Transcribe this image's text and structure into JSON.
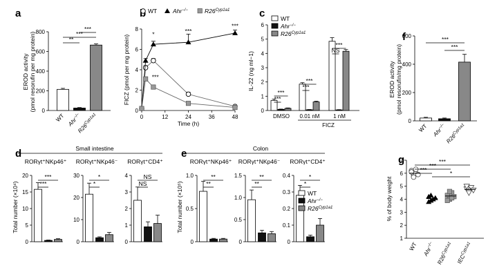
{
  "panel_labels": [
    "a",
    "b",
    "c",
    "d",
    "e",
    "f",
    "g"
  ],
  "colors": {
    "wt": "#ffffff",
    "ahr": "#111111",
    "r26": "#888888",
    "line": "#000000",
    "gridwhite": "#ffffff"
  },
  "chart_data": [
    {
      "id": "a",
      "type": "bar",
      "label": "a",
      "ylabel": [
        "EROD activity",
        "(pmol resorufin per mg protein)"
      ],
      "categories": [
        "WT",
        "Ahr−/−",
        "R26Cyp1a1"
      ],
      "values": [
        215,
        25,
        665
      ],
      "errors": [
        10,
        5,
        12
      ],
      "ylim": [
        0,
        800
      ],
      "yticks": [
        "0",
        "200",
        "400",
        "600",
        "800"
      ],
      "significance": [
        {
          "from": 0,
          "to": 1,
          "text": "**"
        },
        {
          "from": 0,
          "to": 2,
          "text": "***"
        },
        {
          "from": 1,
          "to": 2,
          "text": "***"
        }
      ]
    },
    {
      "id": "b",
      "type": "line",
      "label": "b",
      "ylabel": "FICZ (pmol per mg protein)",
      "xlabel": "Time (h)",
      "xlim": [
        0,
        48
      ],
      "xticks": [
        "0",
        "12",
        "24",
        "36",
        "48"
      ],
      "ylim": [
        0,
        8
      ],
      "yticks": [
        "0",
        "2",
        "4",
        "6",
        "8"
      ],
      "legend": [
        "WT",
        "Ahr−/−",
        "R26Cyp1a1"
      ],
      "series": [
        {
          "name": "WT",
          "marker": "circle-open",
          "x": [
            0,
            2,
            6,
            24,
            48
          ],
          "y": [
            0.2,
            4.2,
            4.9,
            1.6,
            0.4
          ],
          "err": [
            0.1,
            0.2,
            0.2,
            0.2,
            0.1
          ]
        },
        {
          "name": "Ahr−/−",
          "marker": "triangle",
          "x": [
            0,
            2,
            6,
            24,
            48
          ],
          "y": [
            0.2,
            4.9,
            6.5,
            6.7,
            7.6
          ],
          "err": [
            0.1,
            0.2,
            0.3,
            0.8,
            0.3
          ]
        },
        {
          "name": "R26Cyp1a1",
          "marker": "square",
          "x": [
            0,
            2,
            6,
            24,
            48
          ],
          "y": [
            0.2,
            3.1,
            2.3,
            0.7,
            0.3
          ],
          "err": [
            0.1,
            0.2,
            0.2,
            0.1,
            0.05
          ]
        }
      ],
      "annotations": [
        {
          "x": 6,
          "y": 7.3,
          "text": "*"
        },
        {
          "x": 24,
          "y": 7.6,
          "text": "***"
        },
        {
          "x": 48,
          "y": 8.1,
          "text": "***"
        },
        {
          "x": 7,
          "y": 3.1,
          "text": "***"
        }
      ]
    },
    {
      "id": "c",
      "type": "bar",
      "label": "c",
      "ylabel": "IL-22 (ng ml−1)",
      "groups": [
        "DMSO",
        "0.01 nM",
        "1 nM"
      ],
      "group_title": "FICZ",
      "legend": [
        "WT",
        "Ahr−/−",
        "R26Cyp1a1"
      ],
      "series": [
        {
          "name": "WT",
          "values": [
            0.7,
            1.85,
            4.85
          ],
          "err": [
            0.1,
            0.1,
            0.25
          ]
        },
        {
          "name": "Ahr−/−",
          "values": [
            0.08,
            0.05,
            0.04
          ],
          "err": [
            0.02,
            0.02,
            0.02
          ]
        },
        {
          "name": "R26Cyp1a1",
          "values": [
            0.15,
            0.6,
            4.15
          ],
          "err": [
            0.03,
            0.05,
            0.12
          ]
        }
      ],
      "ylim": [
        0,
        6
      ],
      "yticks": [
        "0",
        "1",
        "2",
        "3",
        "4",
        "5",
        "6"
      ],
      "significance": [
        {
          "group": 0,
          "text": "***"
        },
        {
          "group": 0,
          "text": "***"
        },
        {
          "group": 1,
          "text": "***"
        },
        {
          "group": 1,
          "text": "***"
        },
        {
          "group": 2,
          "text": "NS"
        },
        {
          "group": 2,
          "text": "***"
        }
      ]
    },
    {
      "id": "d",
      "type": "bar",
      "label": "d",
      "title": "Small intestine",
      "ylabel": "Total number (×10⁴)",
      "subpanels": [
        {
          "title": "RORγt⁺NKp46⁺",
          "values": [
            15.8,
            0.4,
            0.7
          ],
          "err": [
            2.0,
            0.1,
            0.2
          ],
          "ylim": [
            0,
            20
          ],
          "yticks": [
            "0",
            "5",
            "10",
            "15",
            "20"
          ],
          "sig": [
            "***",
            "***"
          ]
        },
        {
          "title": "RORγt⁺NKp46⁻",
          "values": [
            21.5,
            1.8,
            3.2
          ],
          "err": [
            5.0,
            0.4,
            1.0
          ],
          "ylim": [
            0,
            30
          ],
          "yticks": [
            "0",
            "10",
            "20",
            "30"
          ],
          "sig": [
            "*",
            "*"
          ]
        },
        {
          "title": "RORγt⁺CD4⁺",
          "values": [
            2.5,
            0.9,
            1.1
          ],
          "err": [
            0.8,
            0.3,
            0.5
          ],
          "ylim": [
            0,
            4
          ],
          "yticks": [
            "0",
            "1",
            "2",
            "3",
            "4"
          ],
          "sig": [
            "NS",
            "NS"
          ]
        }
      ]
    },
    {
      "id": "e",
      "type": "bar",
      "label": "e",
      "title": "Colon",
      "ylabel": "Total number (×10⁵)",
      "legend": [
        "WT",
        "Ahr−/−",
        "R26Cyp1a1"
      ],
      "subpanels": [
        {
          "title": "RORγt⁺NKp46⁺",
          "values": [
            0.76,
            0.04,
            0.04
          ],
          "err": [
            0.15,
            0.01,
            0.01
          ],
          "ylim": [
            0,
            1
          ],
          "yticks": [
            "0",
            "0.5",
            "1.0"
          ],
          "ytick_vals": [
            0,
            0.5,
            1.0
          ],
          "sig": [
            "**",
            "**"
          ]
        },
        {
          "title": "RORγt⁺NKp46⁻",
          "values": [
            0.95,
            0.2,
            0.18
          ],
          "err": [
            0.22,
            0.06,
            0.05
          ],
          "ylim": [
            0,
            1.5
          ],
          "yticks": [
            "0",
            "0.5",
            "1.0",
            "1.5"
          ],
          "ytick_vals": [
            0,
            0.5,
            1.0,
            1.5
          ],
          "sig": [
            "**",
            "**"
          ]
        },
        {
          "title": "RORγt⁺CD4⁺",
          "values": [
            0.28,
            0.03,
            0.1
          ],
          "err": [
            0.06,
            0.01,
            0.04
          ],
          "ylim": [
            0,
            0.4
          ],
          "yticks": [
            "0",
            "0.1",
            "0.2",
            "0.3",
            "0.4"
          ],
          "ytick_vals": [
            0,
            0.1,
            0.2,
            0.3,
            0.4
          ],
          "sig": [
            "*",
            "*"
          ]
        }
      ]
    },
    {
      "id": "f",
      "type": "bar",
      "label": "f",
      "ylabel": [
        "EROD activity",
        "(pmol resorufin/mg protein)"
      ],
      "categories": [
        "WT",
        "Ahr−/−",
        "R26Cyp1a1"
      ],
      "values": [
        20,
        15,
        415
      ],
      "errors": [
        5,
        5,
        55
      ],
      "ylim": [
        0,
        600
      ],
      "yticks": [
        "0",
        "200",
        "400",
        "600"
      ],
      "significance": [
        {
          "from": 0,
          "to": 2,
          "text": "***"
        },
        {
          "from": 1,
          "to": 2,
          "text": "***"
        }
      ]
    },
    {
      "id": "g",
      "type": "scatter",
      "label": "g",
      "ylabel": "% of body weight",
      "categories": [
        "WT",
        "Ahr−/−",
        "R26Cyp1a1",
        "IECCyp1a1"
      ],
      "markers": [
        "circle-open",
        "triangle",
        "square",
        "triangle-down-open"
      ],
      "points": [
        [
          6.2,
          5.8,
          6.0,
          5.9,
          6.1,
          5.7,
          6.3
        ],
        [
          4.2,
          3.9,
          4.0,
          4.1,
          3.8,
          4.3,
          4.0
        ],
        [
          4.3,
          4.0,
          4.5,
          4.2,
          3.9,
          4.6,
          4.1
        ],
        [
          4.8,
          4.6,
          4.9,
          4.7,
          5.0,
          4.5
        ]
      ],
      "means": [
        6.0,
        4.05,
        4.25,
        4.75
      ],
      "ylim": [
        1,
        7
      ],
      "yticks": [
        "1",
        "2",
        "3",
        "4",
        "5",
        "6",
        "7"
      ],
      "significance": [
        {
          "from": 0,
          "to": 1,
          "text": "***"
        },
        {
          "from": 0,
          "to": 2,
          "text": "***"
        },
        {
          "from": 0,
          "to": 3,
          "text": "***"
        },
        {
          "from": 1,
          "to": 3,
          "text": "*"
        }
      ]
    }
  ]
}
